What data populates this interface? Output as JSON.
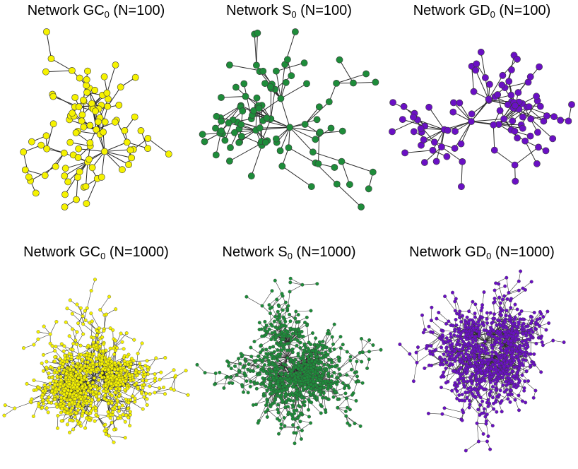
{
  "panels": [
    {
      "id": "gc-100",
      "title_prefix": "Network GC",
      "title_sub": "0",
      "title_suffix": " (N=100)",
      "n": 100,
      "color": "#f5f200"
    },
    {
      "id": "s-100",
      "title_prefix": "Network S",
      "title_sub": "0",
      "title_suffix": " (N=100)",
      "n": 100,
      "color": "#1e8c3a"
    },
    {
      "id": "gd-100",
      "title_prefix": "Network GD",
      "title_sub": "0",
      "title_suffix": " (N=100)",
      "n": 100,
      "color": "#6a10c4"
    },
    {
      "id": "gc-1000",
      "title_prefix": "Network GC",
      "title_sub": "0",
      "title_suffix": " (N=1000)",
      "n": 1000,
      "color": "#f5f200"
    },
    {
      "id": "s-1000",
      "title_prefix": "Network S",
      "title_sub": "0",
      "title_suffix": " (N=1000)",
      "n": 1000,
      "color": "#1e8c3a"
    },
    {
      "id": "gd-1000",
      "title_prefix": "Network GD",
      "title_sub": "0",
      "title_suffix": " (N=1000)",
      "n": 1000,
      "color": "#6a10c4"
    }
  ]
}
